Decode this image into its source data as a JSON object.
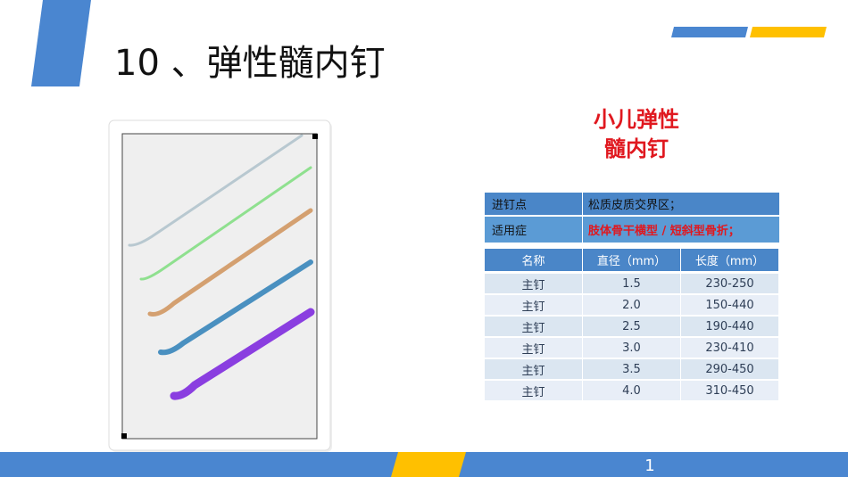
{
  "title": "10 、弹性髓内钉",
  "subtitle": [
    "小儿弹性",
    "髓内钉"
  ],
  "info_table": {
    "rows": [
      [
        "进钉点",
        "松质皮质交界区；"
      ],
      [
        "适用症",
        "肢体骨干横型 / 短斜型骨折；"
      ]
    ]
  },
  "spec_table": {
    "header": [
      "名称",
      "直径（mm）",
      "长度（mm）"
    ],
    "rows": [
      [
        "主钉",
        "1.5",
        "230-250"
      ],
      [
        "主钉",
        "2.0",
        "150-440"
      ],
      [
        "主钉",
        "2.5",
        "190-440"
      ],
      [
        "主钉",
        "3.0",
        "230-410"
      ],
      [
        "主钉",
        "3.5",
        "290-450"
      ],
      [
        "主钉",
        "4.0",
        "310-450"
      ]
    ]
  },
  "page_number": "1"
}
